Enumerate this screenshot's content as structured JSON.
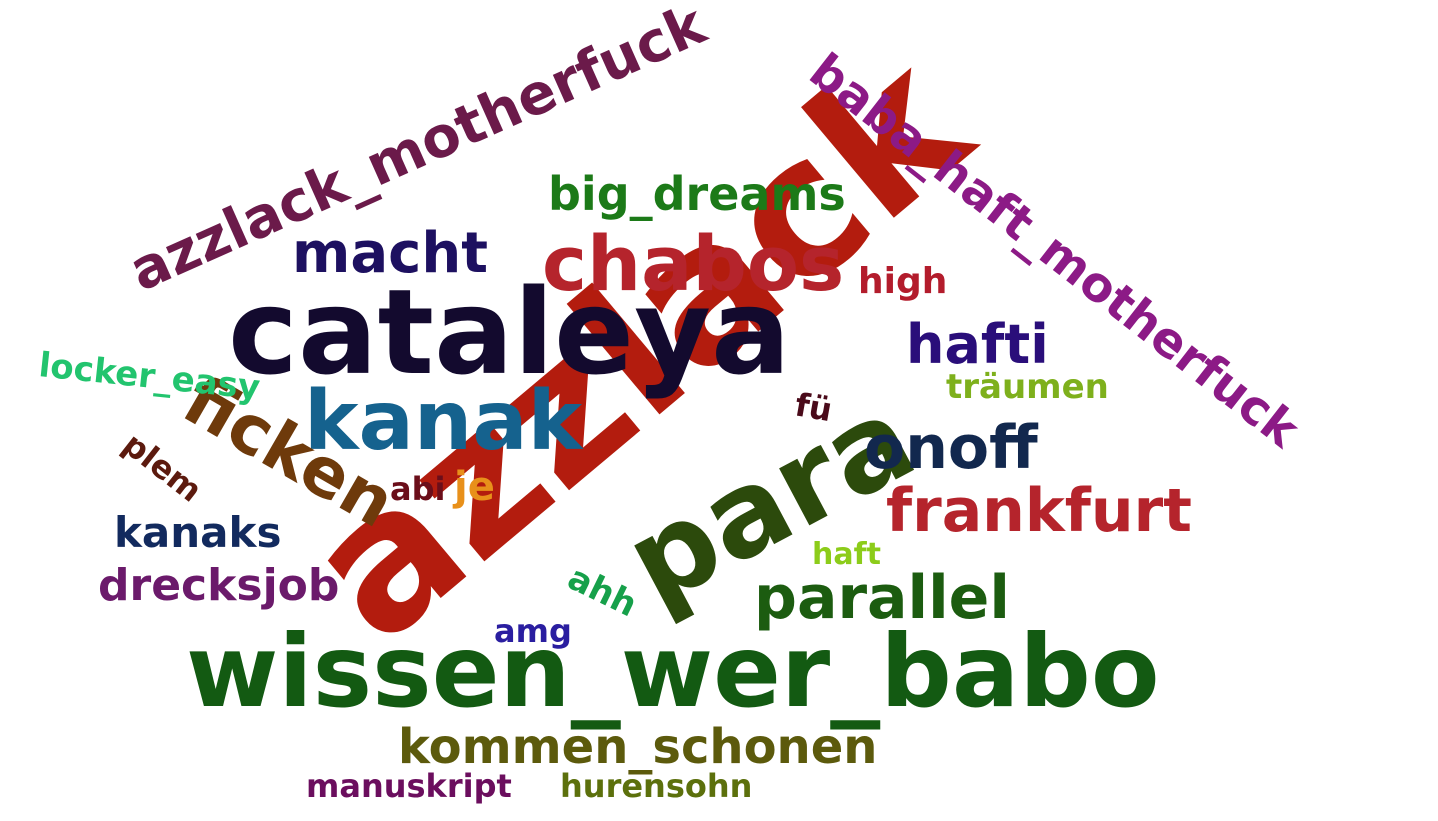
{
  "words": [
    {
      "id": "azzlack",
      "text": "azzlack",
      "color": "#b31c0e"
    },
    {
      "id": "cataleya",
      "text": "cataleya",
      "color": "#130a2e"
    },
    {
      "id": "wissen_wer_babo",
      "text": "wissen_wer_babo",
      "color": "#135a12"
    },
    {
      "id": "para",
      "text": "para",
      "color": "#2c4a0c"
    },
    {
      "id": "chabos",
      "text": "chabos",
      "color": "#b5242c"
    },
    {
      "id": "kanak",
      "text": "kanak",
      "color": "#15628e"
    },
    {
      "id": "ficken",
      "text": "ficken",
      "color": "#6e3a0b"
    },
    {
      "id": "azzlack_motherfuck",
      "text": "azzlack_motherfuck",
      "color": "#6b1a4a"
    },
    {
      "id": "baba_haft_motherfuck",
      "text": "baba_haft_motherfuck",
      "color": "#8c1a86"
    },
    {
      "id": "frankfurt",
      "text": "frankfurt",
      "color": "#b5242c"
    },
    {
      "id": "parallel",
      "text": "parallel",
      "color": "#1c5c10"
    },
    {
      "id": "onoff",
      "text": "onoff",
      "color": "#12284e"
    },
    {
      "id": "macht",
      "text": "macht",
      "color": "#1d1060"
    },
    {
      "id": "big_dreams",
      "text": "big_dreams",
      "color": "#1c7a18"
    },
    {
      "id": "hafti",
      "text": "hafti",
      "color": "#2a0e7a"
    },
    {
      "id": "kommen_schonen",
      "text": "kommen_schonen",
      "color": "#5c5a0c"
    },
    {
      "id": "dreckssjob",
      "text": "drecksjob",
      "color": "#6b1a6b"
    },
    {
      "id": "kanaks",
      "text": "kanaks",
      "color": "#122a5e"
    },
    {
      "id": "high",
      "text": "high",
      "color": "#b31c2c"
    },
    {
      "id": "locker_easy",
      "text": "locker_easy",
      "color": "#22c46e"
    },
    {
      "id": "traeumen",
      "text": "träumen",
      "color": "#7eb01c"
    },
    {
      "id": "manuskript",
      "text": "manuskript",
      "color": "#6b0e5e"
    },
    {
      "id": "hurensohn",
      "text": "hurensohn",
      "color": "#5c700c"
    },
    {
      "id": "plem",
      "text": "plem",
      "color": "#5c1a0e"
    },
    {
      "id": "ahh",
      "text": "ahh",
      "color": "#16a04a"
    },
    {
      "id": "abi",
      "text": "abi",
      "color": "#6b0e1a"
    },
    {
      "id": "je",
      "text": "je",
      "color": "#e8901a"
    },
    {
      "id": "haft",
      "text": "haft",
      "color": "#8ccc1a"
    },
    {
      "id": "amg",
      "text": "amg",
      "color": "#2a1ea0"
    },
    {
      "id": "fu",
      "text": "fü",
      "color": "#4a0a1a"
    }
  ]
}
